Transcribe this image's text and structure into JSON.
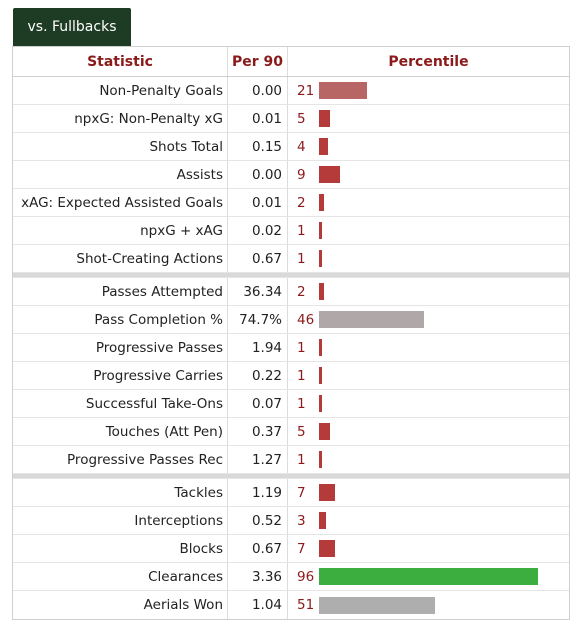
{
  "tab": {
    "label": "vs. Fullbacks"
  },
  "table": {
    "headers": {
      "statistic": "Statistic",
      "per90": "Per 90",
      "percentile": "Percentile"
    },
    "colors": {
      "low": "#b53a3a",
      "low_faded": "#b86566",
      "mid": "#b0a8a8",
      "gray": "#aeaeae",
      "high": "#3cae3f"
    },
    "groups": [
      {
        "rows": [
          {
            "stat": "Non-Penalty Goals",
            "per90": "0.00",
            "percentile": "21",
            "pct": 21,
            "color": "#b86566"
          },
          {
            "stat": "npxG: Non-Penalty xG",
            "per90": "0.01",
            "percentile": "5",
            "pct": 5,
            "color": "#b53a3a"
          },
          {
            "stat": "Shots Total",
            "per90": "0.15",
            "percentile": "4",
            "pct": 4,
            "color": "#b53a3a"
          },
          {
            "stat": "Assists",
            "per90": "0.00",
            "percentile": "9",
            "pct": 9,
            "color": "#b53a3a"
          },
          {
            "stat": "xAG: Expected Assisted Goals",
            "per90": "0.01",
            "percentile": "2",
            "pct": 2,
            "color": "#b53a3a"
          },
          {
            "stat": "npxG + xAG",
            "per90": "0.02",
            "percentile": "1",
            "pct": 1,
            "color": "#b53a3a"
          },
          {
            "stat": "Shot-Creating Actions",
            "per90": "0.67",
            "percentile": "1",
            "pct": 1,
            "color": "#b53a3a"
          }
        ]
      },
      {
        "rows": [
          {
            "stat": "Passes Attempted",
            "per90": "36.34",
            "percentile": "2",
            "pct": 2,
            "color": "#b53a3a"
          },
          {
            "stat": "Pass Completion %",
            "per90": "74.7%",
            "percentile": "46",
            "pct": 46,
            "color": "#b0a8a8"
          },
          {
            "stat": "Progressive Passes",
            "per90": "1.94",
            "percentile": "1",
            "pct": 1,
            "color": "#b53a3a"
          },
          {
            "stat": "Progressive Carries",
            "per90": "0.22",
            "percentile": "1",
            "pct": 1,
            "color": "#b53a3a"
          },
          {
            "stat": "Successful Take-Ons",
            "per90": "0.07",
            "percentile": "1",
            "pct": 1,
            "color": "#b53a3a"
          },
          {
            "stat": "Touches (Att Pen)",
            "per90": "0.37",
            "percentile": "5",
            "pct": 5,
            "color": "#b53a3a"
          },
          {
            "stat": "Progressive Passes Rec",
            "per90": "1.27",
            "percentile": "1",
            "pct": 1,
            "color": "#b53a3a"
          }
        ]
      },
      {
        "rows": [
          {
            "stat": "Tackles",
            "per90": "1.19",
            "percentile": "7",
            "pct": 7,
            "color": "#b53a3a"
          },
          {
            "stat": "Interceptions",
            "per90": "0.52",
            "percentile": "3",
            "pct": 3,
            "color": "#b53a3a"
          },
          {
            "stat": "Blocks",
            "per90": "0.67",
            "percentile": "7",
            "pct": 7,
            "color": "#b53a3a"
          },
          {
            "stat": "Clearances",
            "per90": "3.36",
            "percentile": "96",
            "pct": 96,
            "color": "#3cae3f"
          },
          {
            "stat": "Aerials Won",
            "per90": "1.04",
            "percentile": "51",
            "pct": 51,
            "color": "#aeaeae"
          }
        ]
      }
    ]
  }
}
